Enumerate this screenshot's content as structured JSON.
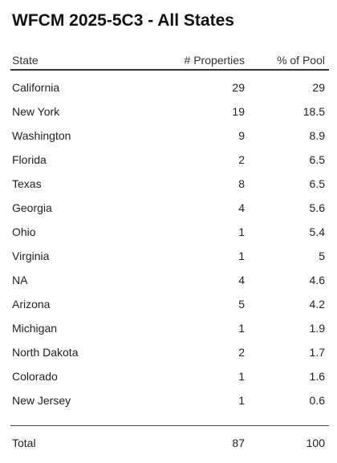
{
  "title": "WFCM 2025-5C3 - All States",
  "columns": {
    "state": "State",
    "properties": "# Properties",
    "pct_pool": "% of Pool"
  },
  "rows": [
    {
      "state": "California",
      "properties": "29",
      "pct": "29"
    },
    {
      "state": "New York",
      "properties": "19",
      "pct": "18.5"
    },
    {
      "state": "Washington",
      "properties": "9",
      "pct": "8.9"
    },
    {
      "state": "Florida",
      "properties": "2",
      "pct": "6.5"
    },
    {
      "state": "Texas",
      "properties": "8",
      "pct": "6.5"
    },
    {
      "state": "Georgia",
      "properties": "4",
      "pct": "5.6"
    },
    {
      "state": "Ohio",
      "properties": "1",
      "pct": "5.4"
    },
    {
      "state": "Virginia",
      "properties": "1",
      "pct": "5"
    },
    {
      "state": "NA",
      "properties": "4",
      "pct": "4.6"
    },
    {
      "state": "Arizona",
      "properties": "5",
      "pct": "4.2"
    },
    {
      "state": "Michigan",
      "properties": "1",
      "pct": "1.9"
    },
    {
      "state": "North Dakota",
      "properties": "2",
      "pct": "1.7"
    },
    {
      "state": "Colorado",
      "properties": "1",
      "pct": "1.6"
    },
    {
      "state": "New Jersey",
      "properties": "1",
      "pct": "0.6"
    }
  ],
  "total": {
    "label": "Total",
    "properties": "87",
    "pct": "100"
  }
}
